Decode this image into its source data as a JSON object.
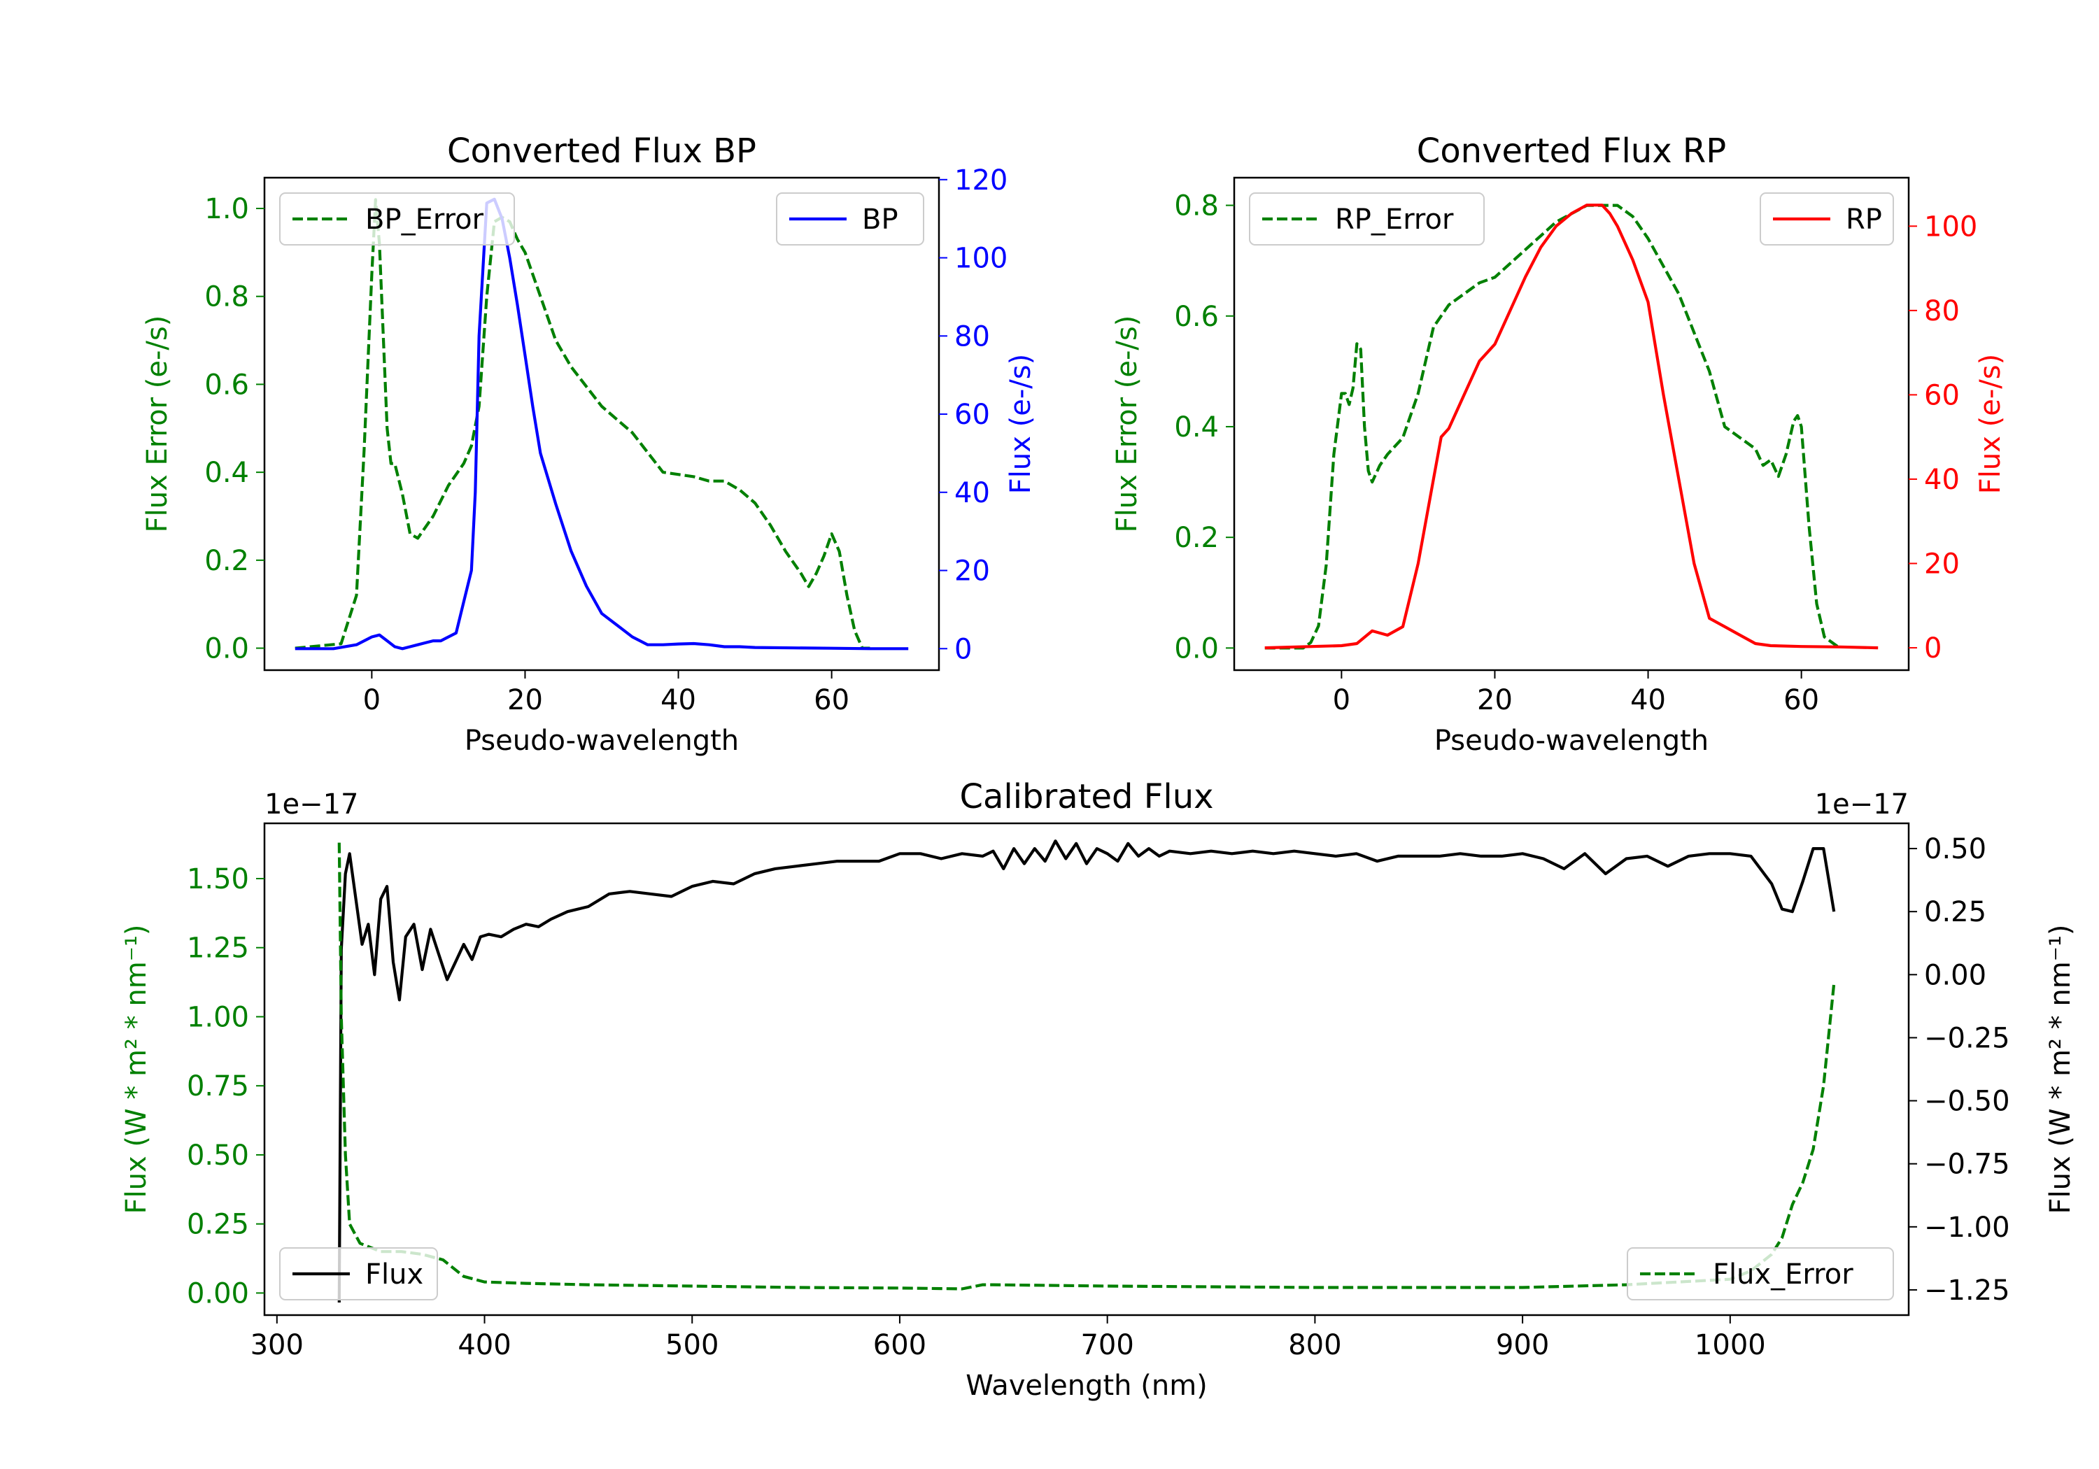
{
  "chart_data": [
    {
      "type": "line",
      "title": "Converted Flux BP",
      "xlabel": "Pseudo-wavelength",
      "ylabel_left": "Flux Error (e-/s)",
      "ylabel_right": "Flux (e-/s)",
      "xlim": [
        -14,
        74
      ],
      "ylim_left": [
        -0.05,
        1.07
      ],
      "ylim_right": [
        -5.5,
        120.5
      ],
      "xticks": [
        0,
        20,
        40,
        60
      ],
      "yticks_left": [
        0.0,
        0.2,
        0.4,
        0.6,
        0.8,
        1.0
      ],
      "yticks_right": [
        0,
        20,
        40,
        60,
        80,
        100,
        120
      ],
      "left_color": "#008000",
      "right_color": "#0000ff",
      "legend_left": {
        "label": "BP_Error",
        "placement": "upper left"
      },
      "legend_right": {
        "label": "BP",
        "placement": "upper right"
      },
      "series": [
        {
          "name": "BP_Error",
          "axis": "left",
          "style": "dashed",
          "color": "#008000",
          "x": [
            -10,
            -4,
            -2,
            -1,
            0,
            0.5,
            1,
            2,
            2.5,
            3,
            4,
            5,
            6,
            8,
            10,
            12,
            13,
            14,
            15,
            16,
            17,
            18,
            19,
            20,
            22,
            24,
            26,
            30,
            34,
            38,
            42,
            44,
            46,
            48,
            50,
            52,
            54,
            56,
            57,
            58,
            59,
            60,
            61,
            62,
            63,
            64,
            65
          ],
          "y": [
            0,
            0.01,
            0.12,
            0.45,
            0.85,
            1.02,
            0.92,
            0.5,
            0.42,
            0.42,
            0.35,
            0.26,
            0.25,
            0.3,
            0.37,
            0.42,
            0.46,
            0.55,
            0.8,
            0.97,
            0.98,
            0.97,
            0.93,
            0.9,
            0.8,
            0.7,
            0.64,
            0.55,
            0.49,
            0.4,
            0.39,
            0.38,
            0.38,
            0.36,
            0.33,
            0.28,
            0.22,
            0.17,
            0.14,
            0.17,
            0.21,
            0.26,
            0.22,
            0.12,
            0.04,
            0.0,
            0.0
          ]
        },
        {
          "name": "BP",
          "axis": "right",
          "style": "solid",
          "color": "#0000ff",
          "x": [
            -10,
            -5,
            -2,
            0,
            1,
            2,
            3,
            4,
            5,
            6,
            7,
            8,
            9,
            10,
            11,
            12,
            13,
            13.5,
            14,
            15,
            16,
            17,
            18,
            19,
            20,
            21,
            22,
            24,
            26,
            28,
            30,
            32,
            34,
            35,
            36,
            38,
            40,
            42,
            44,
            46,
            48,
            50,
            55,
            60,
            65,
            70
          ],
          "y": [
            0,
            0,
            1,
            3,
            3.5,
            2,
            0.5,
            0,
            0.5,
            1,
            1.5,
            2,
            2,
            3,
            4,
            12,
            20,
            40,
            80,
            114,
            115,
            110,
            100,
            88,
            75,
            62,
            50,
            37,
            25,
            16,
            9,
            6,
            3,
            2,
            1,
            1,
            1.2,
            1.3,
            1,
            0.5,
            0.5,
            0.3,
            0.2,
            0.1,
            0,
            0
          ]
        }
      ]
    },
    {
      "type": "line",
      "title": "Converted Flux RP",
      "xlabel": "Pseudo-wavelength",
      "ylabel_left": "Flux Error (e-/s)",
      "ylabel_right": "Flux (e-/s)",
      "xlim": [
        -14,
        74
      ],
      "ylim_left": [
        -0.04,
        0.85
      ],
      "ylim_right": [
        -5.3,
        111.5
      ],
      "xticks": [
        0,
        20,
        40,
        60
      ],
      "yticks_left": [
        0.0,
        0.2,
        0.4,
        0.6,
        0.8
      ],
      "yticks_right": [
        0,
        20,
        40,
        60,
        80,
        100
      ],
      "left_color": "#008000",
      "right_color": "#ff0000",
      "legend_left": {
        "label": "RP_Error",
        "placement": "upper left"
      },
      "legend_right": {
        "label": "RP",
        "placement": "upper right"
      },
      "series": [
        {
          "name": "RP_Error",
          "axis": "left",
          "style": "dashed",
          "color": "#008000",
          "x": [
            -10,
            -5,
            -4,
            -3,
            -2,
            -1,
            0,
            0.5,
            1,
            1.5,
            2,
            2.5,
            3,
            3.5,
            4,
            5,
            6,
            8,
            10,
            12,
            14,
            16,
            18,
            20,
            24,
            28,
            32,
            34,
            36,
            38,
            40,
            44,
            48,
            50,
            52,
            54,
            55,
            56,
            57,
            58,
            59,
            59.5,
            60,
            61,
            62,
            63,
            65
          ],
          "y": [
            0,
            0,
            0.01,
            0.04,
            0.15,
            0.35,
            0.46,
            0.46,
            0.44,
            0.47,
            0.55,
            0.54,
            0.4,
            0.32,
            0.3,
            0.33,
            0.35,
            0.38,
            0.46,
            0.58,
            0.62,
            0.64,
            0.66,
            0.67,
            0.72,
            0.77,
            0.8,
            0.8,
            0.8,
            0.78,
            0.74,
            0.64,
            0.5,
            0.4,
            0.38,
            0.36,
            0.33,
            0.34,
            0.31,
            0.35,
            0.41,
            0.42,
            0.4,
            0.22,
            0.08,
            0.02,
            0.0
          ]
        },
        {
          "name": "RP",
          "axis": "right",
          "style": "solid",
          "color": "#ff0000",
          "x": [
            -10,
            0,
            2,
            4,
            6,
            8,
            10,
            12,
            13,
            14,
            16,
            18,
            20,
            22,
            24,
            26,
            28,
            30,
            32,
            33,
            34,
            35,
            36,
            38,
            40,
            42,
            44,
            46,
            48,
            50,
            52,
            54,
            56,
            60,
            65,
            70
          ],
          "y": [
            0,
            0.5,
            1,
            4,
            3,
            5,
            20,
            40,
            50,
            52,
            60,
            68,
            72,
            80,
            88,
            95,
            100,
            103,
            105,
            105,
            105,
            103,
            100,
            92,
            82,
            60,
            40,
            20,
            7,
            5,
            3,
            1,
            0.5,
            0.3,
            0.2,
            0
          ]
        }
      ]
    },
    {
      "type": "line",
      "title": "Calibrated Flux",
      "xlabel": "Wavelength (nm)",
      "ylabel_left": "Flux (W * m² * nm⁻¹)",
      "ylabel_right": "Flux (W * m² * nm⁻¹)",
      "offset_left": "1e−17",
      "offset_right": "1e−17",
      "xlim": [
        294,
        1086
      ],
      "ylim_left": [
        -0.08,
        1.7
      ],
      "ylim_right": [
        -1.35,
        0.6
      ],
      "xticks": [
        300,
        400,
        500,
        600,
        700,
        800,
        900,
        1000
      ],
      "yticks_left": [
        0.0,
        0.25,
        0.5,
        0.75,
        1.0,
        1.25,
        1.5
      ],
      "yticks_left_labels": [
        "0.00",
        "0.25",
        "0.50",
        "0.75",
        "1.00",
        "1.25",
        "1.50"
      ],
      "yticks_right": [
        -1.25,
        -1.0,
        -0.75,
        -0.5,
        -0.25,
        0.0,
        0.25,
        0.5
      ],
      "yticks_right_labels": [
        "−1.25",
        "−1.00",
        "−0.75",
        "−0.50",
        "−0.25",
        "0.00",
        "0.25",
        "0.50"
      ],
      "left_color": "#008000",
      "right_color": "#000000",
      "legend_left": {
        "label": "Flux",
        "placement": "lower left"
      },
      "legend_right": {
        "label": "Flux_Error",
        "placement": "lower right"
      },
      "series": [
        {
          "name": "Flux",
          "axis": "right",
          "style": "solid",
          "color": "#000000",
          "x": [
            330,
            331,
            333,
            335,
            338,
            341,
            344,
            347,
            350,
            353,
            356,
            359,
            362,
            366,
            370,
            374,
            378,
            382,
            386,
            390,
            394,
            398,
            402,
            408,
            414,
            420,
            426,
            432,
            440,
            450,
            460,
            470,
            480,
            490,
            500,
            510,
            520,
            530,
            540,
            550,
            560,
            570,
            580,
            590,
            600,
            610,
            620,
            630,
            640,
            645,
            650,
            655,
            660,
            665,
            670,
            675,
            680,
            685,
            690,
            695,
            700,
            705,
            710,
            715,
            720,
            725,
            730,
            740,
            750,
            760,
            770,
            780,
            790,
            800,
            810,
            820,
            830,
            840,
            850,
            860,
            870,
            880,
            890,
            900,
            910,
            920,
            930,
            940,
            950,
            960,
            970,
            980,
            990,
            1000,
            1010,
            1020,
            1025,
            1030,
            1035,
            1040,
            1045,
            1050
          ],
          "y": [
            -1.3,
            0.1,
            0.4,
            0.48,
            0.3,
            0.12,
            0.2,
            0.0,
            0.3,
            0.35,
            0.05,
            -0.1,
            0.15,
            0.2,
            0.02,
            0.18,
            0.08,
            -0.02,
            0.05,
            0.12,
            0.06,
            0.15,
            0.16,
            0.15,
            0.18,
            0.2,
            0.19,
            0.22,
            0.25,
            0.27,
            0.32,
            0.33,
            0.32,
            0.31,
            0.35,
            0.37,
            0.36,
            0.4,
            0.42,
            0.43,
            0.44,
            0.45,
            0.45,
            0.45,
            0.48,
            0.48,
            0.46,
            0.48,
            0.47,
            0.49,
            0.42,
            0.5,
            0.44,
            0.5,
            0.45,
            0.53,
            0.46,
            0.52,
            0.44,
            0.5,
            0.48,
            0.45,
            0.52,
            0.47,
            0.5,
            0.47,
            0.49,
            0.48,
            0.49,
            0.48,
            0.49,
            0.48,
            0.49,
            0.48,
            0.47,
            0.48,
            0.45,
            0.47,
            0.47,
            0.47,
            0.48,
            0.47,
            0.47,
            0.48,
            0.46,
            0.42,
            0.48,
            0.4,
            0.46,
            0.47,
            0.43,
            0.47,
            0.48,
            0.48,
            0.47,
            0.36,
            0.26,
            0.25,
            0.37,
            0.5,
            0.5,
            0.25
          ]
        },
        {
          "name": "Flux_Error",
          "axis": "left",
          "style": "dashed",
          "color": "#008000",
          "x": [
            330,
            331,
            333,
            335,
            340,
            350,
            360,
            370,
            380,
            390,
            400,
            420,
            450,
            500,
            550,
            600,
            630,
            640,
            645,
            700,
            800,
            900,
            950,
            1000,
            1010,
            1020,
            1025,
            1030,
            1035,
            1040,
            1045,
            1050
          ],
          "y": [
            1.63,
            1.0,
            0.5,
            0.25,
            0.18,
            0.15,
            0.15,
            0.14,
            0.12,
            0.06,
            0.04,
            0.035,
            0.03,
            0.025,
            0.02,
            0.018,
            0.015,
            0.03,
            0.03,
            0.025,
            0.02,
            0.02,
            0.03,
            0.05,
            0.08,
            0.14,
            0.2,
            0.32,
            0.4,
            0.52,
            0.75,
            1.12
          ]
        }
      ]
    }
  ]
}
